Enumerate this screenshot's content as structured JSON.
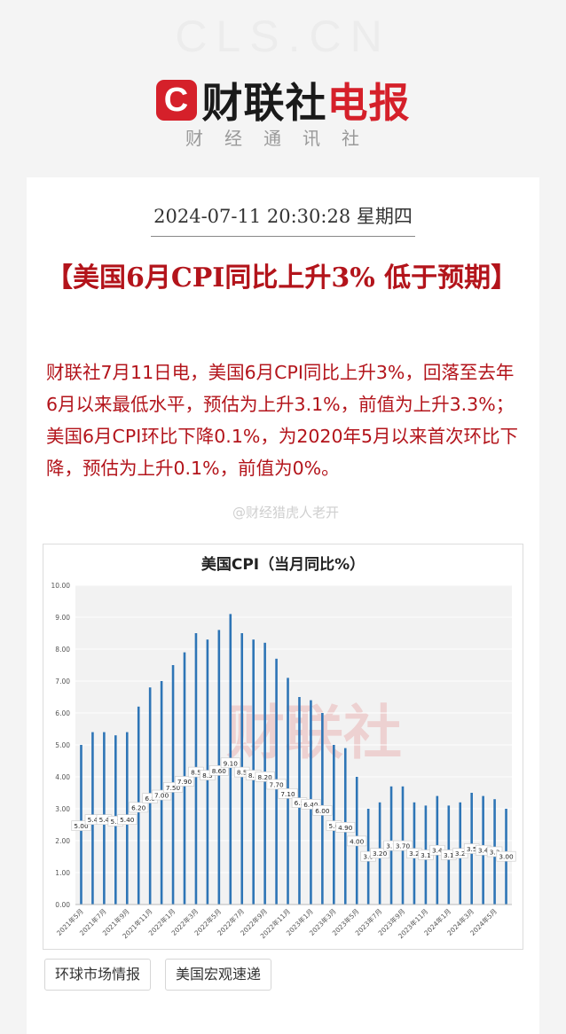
{
  "header": {
    "site_url": "CLS.CN",
    "brand_logo_letter": "C",
    "brand_name_black": "财联社",
    "brand_name_red": "电报",
    "agency_label": "财经通讯社"
  },
  "article": {
    "datetime": "2024-07-11 20:30:28 星期四",
    "headline": "【美国6月CPI同比上升3% 低于预期】",
    "body": "财联社7月11日电，美国6月CPI同比上升3%，回落至去年6月以来最低水平，预估为上升3.1%，前值为上升3.3%；美国6月CPI环比下降0.1%，为2020年5月以来首次环比下降，预估为上升0.1%，前值为0%。",
    "watermark_handle": "@财经猎虎人老开"
  },
  "tags": [
    "环球市场情报",
    "美国宏观速递"
  ],
  "colors": {
    "brand_red": "#d5202a",
    "headline_red": "#b3141b",
    "bar_blue": "#2e75b6"
  },
  "chart_data": {
    "type": "bar",
    "title": "美国CPI（当月同比%）",
    "watermark": "财联社",
    "xlabel": "",
    "ylabel": "",
    "ylim": [
      0,
      10
    ],
    "yticks": [
      "0.00",
      "1.00",
      "2.00",
      "3.00",
      "4.00",
      "5.00",
      "6.00",
      "7.00",
      "8.00",
      "9.00",
      "10.00"
    ],
    "grid": true,
    "categories": [
      "2021年5月",
      "2021年6月",
      "2021年7月",
      "2021年8月",
      "2021年9月",
      "2021年10月",
      "2021年11月",
      "2021年12月",
      "2022年1月",
      "2022年2月",
      "2022年3月",
      "2022年4月",
      "2022年5月",
      "2022年6月",
      "2022年7月",
      "2022年8月",
      "2022年9月",
      "2022年10月",
      "2022年11月",
      "2022年12月",
      "2023年1月",
      "2023年2月",
      "2023年3月",
      "2023年4月",
      "2023年5月",
      "2023年6月",
      "2023年7月",
      "2023年8月",
      "2023年9月",
      "2023年10月",
      "2023年11月",
      "2023年12月",
      "2024年1月",
      "2024年2月",
      "2024年3月",
      "2024年4月",
      "2024年5月",
      "2024年6月"
    ],
    "xtick_labels_shown": [
      "2021年5月",
      "2021年7月",
      "2021年9月",
      "2021年11月",
      "2022年1月",
      "2022年3月",
      "2022年5月",
      "2022年7月",
      "2022年9月",
      "2022年11月",
      "2023年1月",
      "2023年3月",
      "2023年5月",
      "2023年7月",
      "2023年9月",
      "2023年11月",
      "2024年1月",
      "2024年3月",
      "2024年5月"
    ],
    "values": [
      5.0,
      5.4,
      5.4,
      5.3,
      5.4,
      6.2,
      6.8,
      7.0,
      7.5,
      7.9,
      8.5,
      8.3,
      8.6,
      9.1,
      8.5,
      8.3,
      8.2,
      7.7,
      7.1,
      6.5,
      6.4,
      6.0,
      5.0,
      4.9,
      4.0,
      3.0,
      3.2,
      3.7,
      3.7,
      3.2,
      3.1,
      3.4,
      3.1,
      3.2,
      3.5,
      3.4,
      3.3,
      3.0
    ],
    "data_labels": [
      "5.00",
      "5.4",
      "5.4",
      "5.3",
      "5.40",
      "6.20",
      "6.8",
      "7.00",
      "7.50",
      "7.90",
      "8.5",
      "8.3",
      "8.60",
      "9.10",
      "8.5",
      "8.3",
      "8.20",
      "7.70",
      "7.10",
      "6.5",
      "6.40",
      "6.00",
      "5.0",
      "4.90",
      "4.00",
      "3.0",
      "3.20",
      "3.7",
      "3.70",
      "3.2",
      "3.1",
      "3.4",
      "3.1",
      "3.2",
      "3.5",
      "3.4",
      "3.3",
      "3.00"
    ]
  }
}
